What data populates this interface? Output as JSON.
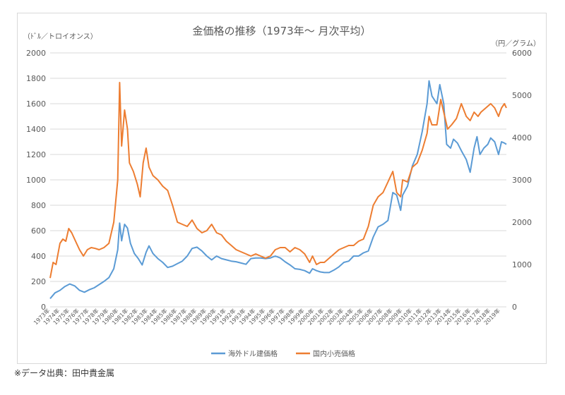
{
  "chart_data": {
    "type": "line",
    "title": "金価格の推移（1973年～ 月次平均）",
    "y_left_unit": "（ﾄﾞﾙ／トロイオンス）",
    "y_right_unit": "（円／グラム）",
    "y_left_range": [
      0,
      2000
    ],
    "y_left_ticks": [
      "0",
      "200",
      "400",
      "600",
      "800",
      "1000",
      "1200",
      "1400",
      "1600",
      "1800",
      "2000"
    ],
    "y_right_range": [
      0,
      6000
    ],
    "y_right_ticks": [
      "0",
      "1000",
      "2000",
      "3000",
      "4000",
      "5000",
      "6000"
    ],
    "x_range": [
      1973,
      2019.6
    ],
    "x_tick_labels": [
      "1973年",
      "1974年",
      "1975年",
      "1976年",
      "1977年",
      "1978年",
      "1979年",
      "1980年",
      "1981年",
      "1982年",
      "1983年",
      "1984年",
      "1985年",
      "1986年",
      "1987年",
      "1988年",
      "1989年",
      "1990年",
      "1991年",
      "1992年",
      "1993年",
      "1994年",
      "1995年",
      "1996年",
      "1997年",
      "1998年",
      "1999年",
      "2000年",
      "2001年",
      "2002年",
      "2003年",
      "2004年",
      "2005年",
      "2006年",
      "2007年",
      "2008年",
      "2009年",
      "2010年",
      "2011年",
      "2012年",
      "2013年",
      "2014年",
      "2015年",
      "2016年",
      "2017年",
      "2018年",
      "2019年"
    ],
    "grid": true,
    "legend_position": "bottom",
    "series": [
      {
        "name": "海外ドル建価格",
        "axis": "left",
        "color": "#5b9bd5",
        "points": [
          [
            1973.0,
            65
          ],
          [
            1973.5,
            110
          ],
          [
            1974.0,
            130
          ],
          [
            1974.5,
            160
          ],
          [
            1975.0,
            180
          ],
          [
            1975.5,
            165
          ],
          [
            1976.0,
            130
          ],
          [
            1976.5,
            115
          ],
          [
            1977.0,
            135
          ],
          [
            1977.5,
            150
          ],
          [
            1978.0,
            175
          ],
          [
            1978.5,
            200
          ],
          [
            1979.0,
            230
          ],
          [
            1979.5,
            300
          ],
          [
            1979.9,
            450
          ],
          [
            1980.1,
            660
          ],
          [
            1980.3,
            520
          ],
          [
            1980.6,
            650
          ],
          [
            1980.9,
            620
          ],
          [
            1981.2,
            500
          ],
          [
            1981.6,
            420
          ],
          [
            1982.0,
            380
          ],
          [
            1982.4,
            330
          ],
          [
            1982.8,
            430
          ],
          [
            1983.1,
            480
          ],
          [
            1983.5,
            420
          ],
          [
            1984.0,
            380
          ],
          [
            1984.5,
            350
          ],
          [
            1985.0,
            310
          ],
          [
            1985.5,
            320
          ],
          [
            1986.0,
            340
          ],
          [
            1986.5,
            360
          ],
          [
            1987.0,
            400
          ],
          [
            1987.5,
            460
          ],
          [
            1988.0,
            470
          ],
          [
            1988.5,
            440
          ],
          [
            1989.0,
            400
          ],
          [
            1989.5,
            370
          ],
          [
            1990.0,
            400
          ],
          [
            1990.5,
            380
          ],
          [
            1991.0,
            370
          ],
          [
            1991.5,
            360
          ],
          [
            1992.0,
            355
          ],
          [
            1992.5,
            345
          ],
          [
            1993.0,
            335
          ],
          [
            1993.5,
            380
          ],
          [
            1994.0,
            385
          ],
          [
            1994.5,
            385
          ],
          [
            1995.0,
            380
          ],
          [
            1995.5,
            385
          ],
          [
            1996.0,
            400
          ],
          [
            1996.5,
            385
          ],
          [
            1997.0,
            355
          ],
          [
            1997.5,
            330
          ],
          [
            1998.0,
            300
          ],
          [
            1998.5,
            295
          ],
          [
            1999.0,
            285
          ],
          [
            1999.5,
            265
          ],
          [
            1999.8,
            300
          ],
          [
            2000.2,
            285
          ],
          [
            2000.6,
            275
          ],
          [
            2001.0,
            270
          ],
          [
            2001.5,
            270
          ],
          [
            2002.0,
            290
          ],
          [
            2002.5,
            315
          ],
          [
            2003.0,
            350
          ],
          [
            2003.5,
            360
          ],
          [
            2004.0,
            400
          ],
          [
            2004.5,
            400
          ],
          [
            2005.0,
            425
          ],
          [
            2005.5,
            440
          ],
          [
            2006.0,
            550
          ],
          [
            2006.5,
            630
          ],
          [
            2007.0,
            650
          ],
          [
            2007.5,
            680
          ],
          [
            2008.0,
            900
          ],
          [
            2008.4,
            880
          ],
          [
            2008.8,
            760
          ],
          [
            2009.0,
            880
          ],
          [
            2009.5,
            950
          ],
          [
            2010.0,
            1110
          ],
          [
            2010.5,
            1200
          ],
          [
            2011.0,
            1380
          ],
          [
            2011.5,
            1600
          ],
          [
            2011.7,
            1780
          ],
          [
            2012.0,
            1660
          ],
          [
            2012.5,
            1600
          ],
          [
            2012.8,
            1750
          ],
          [
            2013.2,
            1600
          ],
          [
            2013.5,
            1280
          ],
          [
            2013.9,
            1250
          ],
          [
            2014.2,
            1320
          ],
          [
            2014.6,
            1290
          ],
          [
            2015.0,
            1230
          ],
          [
            2015.5,
            1160
          ],
          [
            2015.9,
            1060
          ],
          [
            2016.3,
            1250
          ],
          [
            2016.6,
            1340
          ],
          [
            2016.9,
            1200
          ],
          [
            2017.3,
            1250
          ],
          [
            2017.7,
            1280
          ],
          [
            2018.0,
            1330
          ],
          [
            2018.4,
            1300
          ],
          [
            2018.8,
            1200
          ],
          [
            2019.1,
            1300
          ],
          [
            2019.4,
            1290
          ],
          [
            2019.6,
            1280
          ]
        ]
      },
      {
        "name": "国内小売価格",
        "axis": "right",
        "color": "#ed7d31",
        "points": [
          [
            1973.0,
            680
          ],
          [
            1973.3,
            1050
          ],
          [
            1973.6,
            1000
          ],
          [
            1974.0,
            1500
          ],
          [
            1974.3,
            1600
          ],
          [
            1974.6,
            1550
          ],
          [
            1974.9,
            1850
          ],
          [
            1975.2,
            1750
          ],
          [
            1975.6,
            1550
          ],
          [
            1976.0,
            1350
          ],
          [
            1976.4,
            1200
          ],
          [
            1976.8,
            1350
          ],
          [
            1977.2,
            1400
          ],
          [
            1977.6,
            1380
          ],
          [
            1978.0,
            1350
          ],
          [
            1978.5,
            1400
          ],
          [
            1979.0,
            1500
          ],
          [
            1979.5,
            2000
          ],
          [
            1979.9,
            3000
          ],
          [
            1980.1,
            5300
          ],
          [
            1980.3,
            3800
          ],
          [
            1980.6,
            4650
          ],
          [
            1980.9,
            4200
          ],
          [
            1981.1,
            3400
          ],
          [
            1981.5,
            3200
          ],
          [
            1981.9,
            2900
          ],
          [
            1982.2,
            2600
          ],
          [
            1982.5,
            3400
          ],
          [
            1982.8,
            3750
          ],
          [
            1983.1,
            3300
          ],
          [
            1983.5,
            3100
          ],
          [
            1984.0,
            3000
          ],
          [
            1984.5,
            2850
          ],
          [
            1985.0,
            2750
          ],
          [
            1985.5,
            2400
          ],
          [
            1986.0,
            2000
          ],
          [
            1986.5,
            1950
          ],
          [
            1987.0,
            1900
          ],
          [
            1987.5,
            2050
          ],
          [
            1988.0,
            1850
          ],
          [
            1988.5,
            1750
          ],
          [
            1989.0,
            1800
          ],
          [
            1989.5,
            1950
          ],
          [
            1990.0,
            1750
          ],
          [
            1990.5,
            1700
          ],
          [
            1991.0,
            1550
          ],
          [
            1991.5,
            1450
          ],
          [
            1992.0,
            1350
          ],
          [
            1992.5,
            1300
          ],
          [
            1993.0,
            1250
          ],
          [
            1993.5,
            1200
          ],
          [
            1994.0,
            1250
          ],
          [
            1994.5,
            1200
          ],
          [
            1995.0,
            1150
          ],
          [
            1995.5,
            1200
          ],
          [
            1996.0,
            1350
          ],
          [
            1996.5,
            1400
          ],
          [
            1997.0,
            1400
          ],
          [
            1997.5,
            1300
          ],
          [
            1998.0,
            1400
          ],
          [
            1998.5,
            1350
          ],
          [
            1999.0,
            1250
          ],
          [
            1999.5,
            1050
          ],
          [
            1999.8,
            1200
          ],
          [
            2000.2,
            1000
          ],
          [
            2000.6,
            1050
          ],
          [
            2001.0,
            1050
          ],
          [
            2001.5,
            1150
          ],
          [
            2002.0,
            1250
          ],
          [
            2002.5,
            1350
          ],
          [
            2003.0,
            1400
          ],
          [
            2003.5,
            1450
          ],
          [
            2004.0,
            1450
          ],
          [
            2004.5,
            1550
          ],
          [
            2005.0,
            1600
          ],
          [
            2005.5,
            1900
          ],
          [
            2006.0,
            2400
          ],
          [
            2006.5,
            2600
          ],
          [
            2007.0,
            2700
          ],
          [
            2007.5,
            2950
          ],
          [
            2008.0,
            3200
          ],
          [
            2008.4,
            2700
          ],
          [
            2008.8,
            2600
          ],
          [
            2009.0,
            3000
          ],
          [
            2009.5,
            2950
          ],
          [
            2010.0,
            3300
          ],
          [
            2010.5,
            3400
          ],
          [
            2011.0,
            3700
          ],
          [
            2011.5,
            4100
          ],
          [
            2011.7,
            4500
          ],
          [
            2012.0,
            4300
          ],
          [
            2012.5,
            4300
          ],
          [
            2012.9,
            4900
          ],
          [
            2013.2,
            4600
          ],
          [
            2013.6,
            4200
          ],
          [
            2014.0,
            4300
          ],
          [
            2014.5,
            4450
          ],
          [
            2015.0,
            4800
          ],
          [
            2015.5,
            4500
          ],
          [
            2015.9,
            4400
          ],
          [
            2016.3,
            4600
          ],
          [
            2016.7,
            4500
          ],
          [
            2017.0,
            4600
          ],
          [
            2017.5,
            4700
          ],
          [
            2018.0,
            4800
          ],
          [
            2018.4,
            4700
          ],
          [
            2018.8,
            4500
          ],
          [
            2019.1,
            4700
          ],
          [
            2019.4,
            4800
          ],
          [
            2019.6,
            4700
          ]
        ]
      }
    ]
  },
  "source_note": "※データ出典：田中貴金属"
}
